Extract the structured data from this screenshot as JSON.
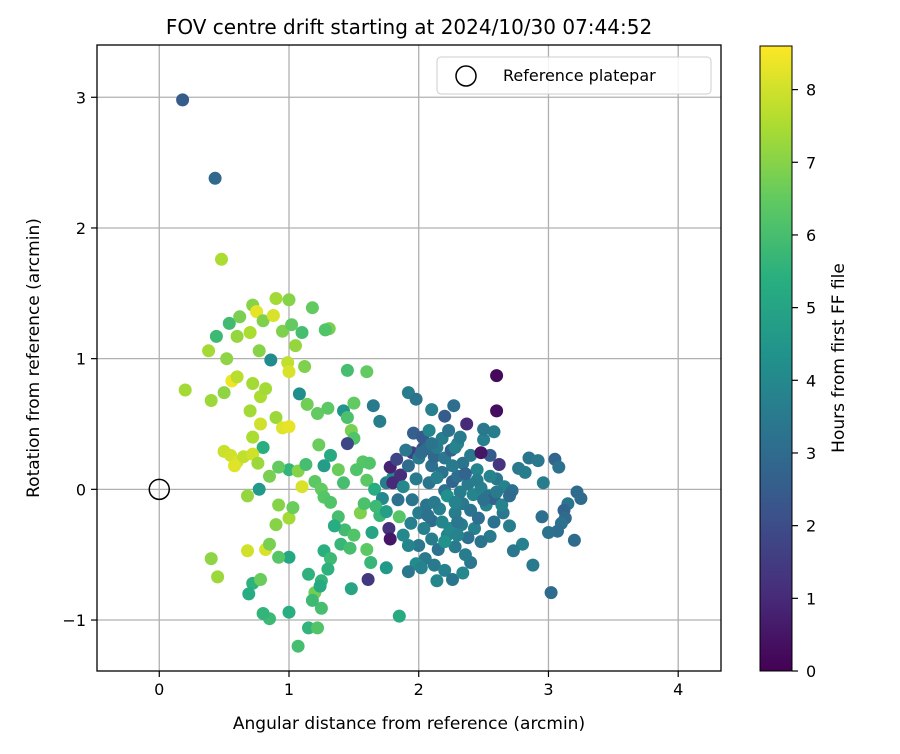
{
  "chart_data": {
    "type": "scatter",
    "title": "FOV centre drift starting at 2024/10/30 07:44:52",
    "xlabel": "Angular distance from reference (arcmin)",
    "ylabel": "Rotation from reference (arcmin)",
    "xlim": [
      -0.48,
      4.33
    ],
    "ylim": [
      -1.39,
      3.4
    ],
    "xticks": [
      0,
      1,
      2,
      3,
      4
    ],
    "xtick_labels": [
      "0",
      "1",
      "2",
      "3",
      "4"
    ],
    "yticks": [
      -1,
      0,
      1,
      2,
      3
    ],
    "ytick_labels": [
      "−1",
      "0",
      "1",
      "2",
      "3"
    ],
    "grid": true,
    "legend": {
      "position": "upper-right",
      "entries": [
        "Reference platepar"
      ]
    },
    "reference_point": {
      "x": 0,
      "y": 0,
      "label": "Reference platepar"
    },
    "colorbar": {
      "label": "Hours from first FF file",
      "colormap": "viridis",
      "range": [
        0,
        8.6
      ],
      "ticks": [
        0,
        1,
        2,
        3,
        4,
        5,
        6,
        7,
        8
      ],
      "tick_labels": [
        "0",
        "1",
        "2",
        "3",
        "4",
        "5",
        "6",
        "7",
        "8"
      ]
    },
    "points_columns": [
      "x",
      "y",
      "hours"
    ],
    "points": [
      [
        0.18,
        2.98,
        2.5
      ],
      [
        0.43,
        2.38,
        2.9
      ],
      [
        0.48,
        1.76,
        7.5
      ],
      [
        0.72,
        1.41,
        7.0
      ],
      [
        0.75,
        1.36,
        8.3
      ],
      [
        0.9,
        1.46,
        7.4
      ],
      [
        1.0,
        1.45,
        7.0
      ],
      [
        1.18,
        1.39,
        6.5
      ],
      [
        1.31,
        1.23,
        6.8
      ],
      [
        1.28,
        1.22,
        6.2
      ],
      [
        0.44,
        1.17,
        5.8
      ],
      [
        0.54,
        1.27,
        5.9
      ],
      [
        0.62,
        1.32,
        6.8
      ],
      [
        0.8,
        1.29,
        6.9
      ],
      [
        0.88,
        1.33,
        8.1
      ],
      [
        0.95,
        1.21,
        6.9
      ],
      [
        1.02,
        1.26,
        6.5
      ],
      [
        1.1,
        1.2,
        6.0
      ],
      [
        0.38,
        1.06,
        7.4
      ],
      [
        0.52,
        1.0,
        7.1
      ],
      [
        0.6,
        1.17,
        7.2
      ],
      [
        0.7,
        1.2,
        7.5
      ],
      [
        0.77,
        1.06,
        7.0
      ],
      [
        0.86,
        0.99,
        4.1
      ],
      [
        0.99,
        0.97,
        7.8
      ],
      [
        1.05,
        1.1,
        7.2
      ],
      [
        1.12,
        0.94,
        6.9
      ],
      [
        0.2,
        0.76,
        7.4
      ],
      [
        0.4,
        0.68,
        7.3
      ],
      [
        0.5,
        0.74,
        7.1
      ],
      [
        0.56,
        0.83,
        8.4
      ],
      [
        0.6,
        0.86,
        7.7
      ],
      [
        0.72,
        0.81,
        7.4
      ],
      [
        0.78,
        0.71,
        7.5
      ],
      [
        0.82,
        0.77,
        7.4
      ],
      [
        1.0,
        0.9,
        8.1
      ],
      [
        1.08,
        0.73,
        4.2
      ],
      [
        1.14,
        0.65,
        6.7
      ],
      [
        1.22,
        0.58,
        6.5
      ],
      [
        1.3,
        0.62,
        6.4
      ],
      [
        0.7,
        0.6,
        7.4
      ],
      [
        0.78,
        0.5,
        8.0
      ],
      [
        0.9,
        0.55,
        7.3
      ],
      [
        0.95,
        0.47,
        8.2
      ],
      [
        1.0,
        0.48,
        8.3
      ],
      [
        0.72,
        0.4,
        7.5
      ],
      [
        0.8,
        0.32,
        5.4
      ],
      [
        0.5,
        0.29,
        7.9
      ],
      [
        0.55,
        0.26,
        8.0
      ],
      [
        0.6,
        0.21,
        8.1
      ],
      [
        0.65,
        0.25,
        7.8
      ],
      [
        0.72,
        0.27,
        8.0
      ],
      [
        0.76,
        0.2,
        7.3
      ],
      [
        0.58,
        0.18,
        8.2
      ],
      [
        1.0,
        0.15,
        5.6
      ],
      [
        1.07,
        0.14,
        7.0
      ],
      [
        1.13,
        0.19,
        6.0
      ],
      [
        1.23,
        0.34,
        6.6
      ],
      [
        1.27,
        0.18,
        4.7
      ],
      [
        1.32,
        0.26,
        5.2
      ],
      [
        1.42,
        0.6,
        4.4
      ],
      [
        1.45,
        0.55,
        6.1
      ],
      [
        1.48,
        0.45,
        6.8
      ],
      [
        1.5,
        0.39,
        6.2
      ],
      [
        1.5,
        0.66,
        6.5
      ],
      [
        1.45,
        0.91,
        6.0
      ],
      [
        1.6,
        0.9,
        6.5
      ],
      [
        1.65,
        0.64,
        3.5
      ],
      [
        1.7,
        0.52,
        3.6
      ],
      [
        1.57,
        0.21,
        6.3
      ],
      [
        1.62,
        0.2,
        6.2
      ],
      [
        1.45,
        0.35,
        1.8
      ],
      [
        1.52,
        0.15,
        6.2
      ],
      [
        1.38,
        0.15,
        6.6
      ],
      [
        1.42,
        0.05,
        6.0
      ],
      [
        1.6,
        0.07,
        6.4
      ],
      [
        1.66,
        0.0,
        5.3
      ],
      [
        1.75,
        0.05,
        3.6
      ],
      [
        1.8,
        0.09,
        4.1
      ],
      [
        1.72,
        -0.07,
        4.0
      ],
      [
        1.85,
        -0.21,
        6.3
      ],
      [
        1.7,
        -0.2,
        5.7
      ],
      [
        1.64,
        -0.33,
        5.0
      ],
      [
        1.6,
        -0.46,
        6.4
      ],
      [
        1.63,
        -0.56,
        5.7
      ],
      [
        1.61,
        -0.69,
        1.4
      ],
      [
        1.75,
        -0.6,
        4.6
      ],
      [
        1.85,
        -0.97,
        5.2
      ],
      [
        1.2,
        0.06,
        6.4
      ],
      [
        1.25,
        0.0,
        6.5
      ],
      [
        1.27,
        -0.06,
        6.3
      ],
      [
        1.32,
        -0.1,
        6.2
      ],
      [
        1.38,
        -0.21,
        6.0
      ],
      [
        1.43,
        -0.31,
        5.9
      ],
      [
        1.5,
        -0.35,
        6.2
      ],
      [
        1.27,
        -0.47,
        5.4
      ],
      [
        1.32,
        -0.53,
        5.8
      ],
      [
        1.3,
        -0.61,
        5.5
      ],
      [
        1.25,
        -0.7,
        5.6
      ],
      [
        1.2,
        -0.79,
        6.7
      ],
      [
        1.25,
        -0.91,
        6.0
      ],
      [
        1.18,
        -0.85,
        5.8
      ],
      [
        1.15,
        -1.06,
        5.6
      ],
      [
        1.22,
        -1.06,
        6.2
      ],
      [
        1.07,
        -1.2,
        6.0
      ],
      [
        1.0,
        -0.94,
        5.4
      ],
      [
        0.85,
        -0.99,
        5.8
      ],
      [
        0.8,
        -0.95,
        5.6
      ],
      [
        0.72,
        -0.72,
        5.5
      ],
      [
        0.69,
        -0.8,
        5.3
      ],
      [
        0.45,
        -0.67,
        7.3
      ],
      [
        0.4,
        -0.53,
        7.1
      ],
      [
        0.68,
        -0.47,
        8.0
      ],
      [
        0.82,
        -0.46,
        8.1
      ],
      [
        0.85,
        -0.42,
        6.8
      ],
      [
        0.9,
        -0.27,
        7.0
      ],
      [
        0.92,
        -0.12,
        7.0
      ],
      [
        1.0,
        -0.22,
        7.4
      ],
      [
        1.03,
        -0.14,
        6.6
      ],
      [
        1.0,
        -0.52,
        5.1
      ],
      [
        0.92,
        -0.52,
        6.3
      ],
      [
        0.68,
        -0.05,
        7.2
      ],
      [
        0.77,
        0.0,
        4.6
      ],
      [
        0.85,
        0.1,
        6.8
      ],
      [
        0.92,
        0.17,
        6.5
      ],
      [
        1.1,
        0.02,
        8.1
      ],
      [
        1.15,
        -0.65,
        5.5
      ],
      [
        1.24,
        -0.74,
        5.2
      ],
      [
        0.78,
        -0.69,
        6.6
      ],
      [
        1.48,
        -0.76,
        5.0
      ],
      [
        1.35,
        -0.28,
        5.3
      ],
      [
        1.4,
        -0.42,
        5.7
      ],
      [
        1.47,
        -0.45,
        6.0
      ],
      [
        1.55,
        -0.18,
        6.9
      ],
      [
        1.58,
        -0.11,
        6.1
      ],
      [
        1.67,
        -0.13,
        5.8
      ],
      [
        1.75,
        -0.17,
        4.8
      ],
      [
        1.77,
        -0.3,
        1.2
      ],
      [
        1.78,
        -0.38,
        0.5
      ],
      [
        1.8,
        0.05,
        1.0
      ],
      [
        1.78,
        0.17,
        0.8
      ],
      [
        1.83,
        0.23,
        1.8
      ],
      [
        1.86,
        0.11,
        1.1
      ],
      [
        1.92,
        0.18,
        3.0
      ],
      [
        1.95,
        0.28,
        1.6
      ],
      [
        2.0,
        0.24,
        3.5
      ],
      [
        2.03,
        0.31,
        2.1
      ],
      [
        2.1,
        0.18,
        3.1
      ],
      [
        2.12,
        0.25,
        2.9
      ],
      [
        2.18,
        0.13,
        3.2
      ],
      [
        2.2,
        0.24,
        3.4
      ],
      [
        2.25,
        0.3,
        2.7
      ],
      [
        2.3,
        0.35,
        3.8
      ],
      [
        2.34,
        0.2,
        3.3
      ],
      [
        2.4,
        0.26,
        3.5
      ],
      [
        2.45,
        0.15,
        3.9
      ],
      [
        2.5,
        0.38,
        3.7
      ],
      [
        2.55,
        0.26,
        2.5
      ],
      [
        2.58,
        0.44,
        3.6
      ],
      [
        2.62,
        0.19,
        1.3
      ],
      [
        1.92,
        0.74,
        3.6
      ],
      [
        1.98,
        0.69,
        3.3
      ],
      [
        2.1,
        0.61,
        3.7
      ],
      [
        2.2,
        0.56,
        2.5
      ],
      [
        2.27,
        0.64,
        3.1
      ],
      [
        2.37,
        0.5,
        1.0
      ],
      [
        2.5,
        0.46,
        3.4
      ],
      [
        2.6,
        0.6,
        0.3
      ],
      [
        2.6,
        0.87,
        0.2
      ],
      [
        2.48,
        0.28,
        0.5
      ],
      [
        2.28,
        0.32,
        3.8
      ],
      [
        2.32,
        0.4,
        3.5
      ],
      [
        1.96,
        0.43,
        2.6
      ],
      [
        2.03,
        0.4,
        2.4
      ],
      [
        2.06,
        0.31,
        3.0
      ],
      [
        2.08,
        0.05,
        3.3
      ],
      [
        2.14,
        0.09,
        3.7
      ],
      [
        2.2,
        -0.01,
        3.2
      ],
      [
        2.26,
        0.06,
        2.8
      ],
      [
        2.32,
        -0.02,
        3.6
      ],
      [
        2.38,
        0.04,
        3.5
      ],
      [
        2.42,
        -0.04,
        3.9
      ],
      [
        2.48,
        0.01,
        3.7
      ],
      [
        2.54,
        -0.05,
        3.3
      ],
      [
        2.6,
        0.08,
        3.4
      ],
      [
        2.66,
        0.02,
        3.8
      ],
      [
        2.72,
        -0.01,
        3.1
      ],
      [
        2.77,
        0.16,
        3.5
      ],
      [
        2.85,
        0.24,
        3.3
      ],
      [
        2.92,
        0.22,
        3.4
      ],
      [
        2.96,
        0.05,
        3.6
      ],
      [
        2.82,
        0.13,
        3.6
      ],
      [
        3.05,
        0.23,
        2.8
      ],
      [
        3.08,
        0.17,
        3.2
      ],
      [
        3.22,
        -0.02,
        3.0
      ],
      [
        3.25,
        -0.07,
        3.0
      ],
      [
        3.15,
        -0.11,
        3.3
      ],
      [
        3.12,
        -0.16,
        2.8
      ],
      [
        3.13,
        -0.22,
        3.0
      ],
      [
        3.1,
        -0.26,
        3.2
      ],
      [
        3.07,
        -0.32,
        3.1
      ],
      [
        3.2,
        -0.39,
        3.0
      ],
      [
        3.0,
        -0.33,
        3.2
      ],
      [
        2.95,
        -0.21,
        3.1
      ],
      [
        3.02,
        -0.79,
        3.0
      ],
      [
        2.88,
        -0.58,
        3.5
      ],
      [
        2.8,
        -0.42,
        3.7
      ],
      [
        2.73,
        -0.47,
        3.4
      ],
      [
        2.7,
        -0.28,
        3.6
      ],
      [
        2.65,
        -0.18,
        3.4
      ],
      [
        2.58,
        -0.25,
        3.2
      ],
      [
        2.55,
        -0.36,
        3.5
      ],
      [
        2.48,
        -0.4,
        3.3
      ],
      [
        2.43,
        -0.3,
        3.7
      ],
      [
        2.38,
        -0.37,
        3.2
      ],
      [
        2.33,
        -0.27,
        3.6
      ],
      [
        2.28,
        -0.44,
        3.5
      ],
      [
        2.22,
        -0.35,
        3.8
      ],
      [
        2.15,
        -0.46,
        3.2
      ],
      [
        2.1,
        -0.38,
        3.6
      ],
      [
        2.05,
        -0.53,
        3.5
      ],
      [
        1.98,
        -0.57,
        4.1
      ],
      [
        1.92,
        -0.63,
        3.4
      ],
      [
        2.02,
        -0.6,
        3.8
      ],
      [
        2.12,
        -0.58,
        3.5
      ],
      [
        2.2,
        -0.62,
        3.7
      ],
      [
        2.26,
        -0.69,
        3.3
      ],
      [
        2.34,
        -0.64,
        4.0
      ],
      [
        2.4,
        -0.56,
        3.4
      ],
      [
        2.14,
        -0.7,
        3.9
      ],
      [
        2.0,
        -0.43,
        3.4
      ],
      [
        1.92,
        -0.43,
        3.9
      ],
      [
        1.88,
        -0.35,
        4.0
      ],
      [
        1.94,
        -0.26,
        3.7
      ],
      [
        2.0,
        -0.18,
        3.6
      ],
      [
        2.06,
        -0.12,
        3.3
      ],
      [
        2.1,
        -0.24,
        3.0
      ],
      [
        2.16,
        -0.15,
        3.7
      ],
      [
        2.22,
        -0.05,
        4.3
      ],
      [
        2.28,
        -0.18,
        3.6
      ],
      [
        2.34,
        -0.11,
        3.4
      ],
      [
        2.4,
        -0.16,
        3.3
      ],
      [
        2.46,
        -0.22,
        3.1
      ],
      [
        2.52,
        -0.12,
        3.8
      ],
      [
        2.58,
        -0.07,
        2.7
      ],
      [
        2.64,
        -0.12,
        3.8
      ],
      [
        2.7,
        -0.05,
        3.0
      ],
      [
        2.3,
        0.1,
        3.1
      ],
      [
        2.36,
        0.12,
        2.8
      ],
      [
        2.18,
        0.39,
        3.6
      ],
      [
        2.23,
        0.45,
        3.3
      ],
      [
        2.14,
        0.32,
        3.6
      ],
      [
        2.08,
        0.45,
        3.9
      ],
      [
        2.02,
        0.28,
        3.0
      ],
      [
        1.98,
        0.08,
        3.5
      ],
      [
        1.95,
        -0.08,
        3.3
      ],
      [
        1.88,
        0.02,
        4.0
      ],
      [
        1.84,
        -0.08,
        3.2
      ],
      [
        1.9,
        0.3,
        3.4
      ],
      [
        2.45,
        0.07,
        3.6
      ],
      [
        2.5,
        -0.08,
        3.2
      ],
      [
        2.55,
        0.1,
        3.8
      ],
      [
        2.6,
        -0.02,
        3.5
      ],
      [
        2.1,
        0.35,
        3.3
      ],
      [
        2.26,
        0.18,
        3.5
      ],
      [
        2.24,
        -0.3,
        4.0
      ],
      [
        2.3,
        -0.35,
        3.8
      ],
      [
        2.36,
        -0.5,
        3.6
      ],
      [
        2.18,
        -0.25,
        3.9
      ],
      [
        2.12,
        -0.1,
        3.5
      ],
      [
        2.04,
        -0.3,
        3.7
      ],
      [
        2.07,
        -0.2,
        3.2
      ],
      [
        2.2,
        -0.4,
        4.3
      ],
      [
        2.28,
        -0.1,
        3.8
      ],
      [
        2.3,
        -0.25,
        3.4
      ]
    ]
  }
}
